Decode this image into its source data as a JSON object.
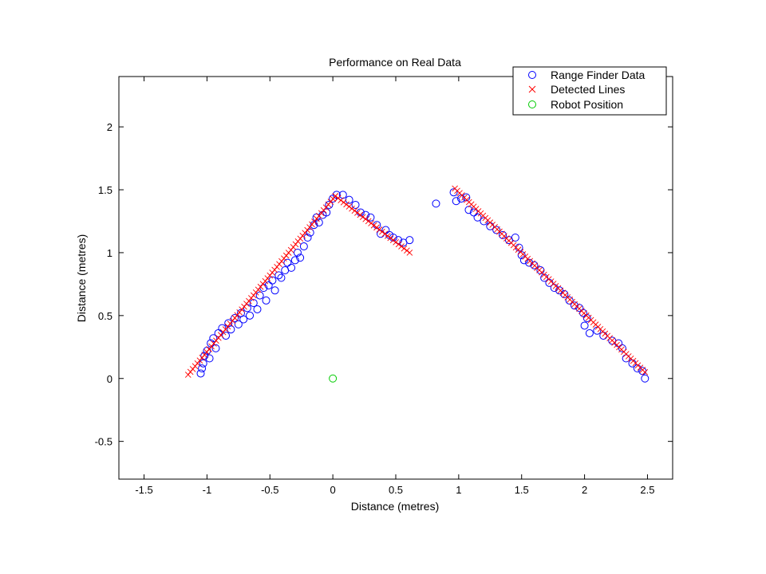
{
  "chart_data": {
    "type": "scatter",
    "title": "Performance on Real Data",
    "xlabel": "Distance (metres)",
    "ylabel": "Distance (metres)",
    "xlim": [
      -1.7,
      2.7
    ],
    "ylim": [
      -0.8,
      2.4
    ],
    "xticks": [
      -1.5,
      -1,
      -0.5,
      0,
      0.5,
      1,
      1.5,
      2,
      2.5
    ],
    "xtick_labels": [
      "-1.5",
      "-1",
      "-0.5",
      "0",
      "0.5",
      "1",
      "1.5",
      "2",
      "2.5"
    ],
    "yticks": [
      -0.5,
      0,
      0.5,
      1,
      1.5,
      2
    ],
    "ytick_labels": [
      "-0.5",
      "0",
      "0.5",
      "1",
      "1.5",
      "2"
    ],
    "grid": false,
    "legend_position": "top-right",
    "series": [
      {
        "name": "Range Finder Data",
        "marker": "circle",
        "color": "#0000ff",
        "points": [
          [
            -1.05,
            0.04
          ],
          [
            -1.04,
            0.08
          ],
          [
            -1.03,
            0.12
          ],
          [
            -1.02,
            0.18
          ],
          [
            -1.0,
            0.22
          ],
          [
            -0.98,
            0.16
          ],
          [
            -0.97,
            0.28
          ],
          [
            -0.95,
            0.32
          ],
          [
            -0.93,
            0.24
          ],
          [
            -0.91,
            0.36
          ],
          [
            -0.88,
            0.4
          ],
          [
            -0.85,
            0.34
          ],
          [
            -0.83,
            0.44
          ],
          [
            -0.81,
            0.39
          ],
          [
            -0.78,
            0.48
          ],
          [
            -0.75,
            0.43
          ],
          [
            -0.73,
            0.52
          ],
          [
            -0.71,
            0.47
          ],
          [
            -0.68,
            0.56
          ],
          [
            -0.66,
            0.5
          ],
          [
            -0.63,
            0.6
          ],
          [
            -0.6,
            0.55
          ],
          [
            -0.58,
            0.66
          ],
          [
            -0.55,
            0.72
          ],
          [
            -0.53,
            0.62
          ],
          [
            -0.51,
            0.74
          ],
          [
            -0.48,
            0.78
          ],
          [
            -0.46,
            0.7
          ],
          [
            -0.43,
            0.82
          ],
          [
            -0.41,
            0.8
          ],
          [
            -0.38,
            0.86
          ],
          [
            -0.36,
            0.92
          ],
          [
            -0.33,
            0.88
          ],
          [
            -0.3,
            0.94
          ],
          [
            -0.28,
            1.0
          ],
          [
            -0.26,
            0.96
          ],
          [
            -0.23,
            1.05
          ],
          [
            -0.2,
            1.12
          ],
          [
            -0.18,
            1.16
          ],
          [
            -0.15,
            1.22
          ],
          [
            -0.13,
            1.28
          ],
          [
            -0.11,
            1.24
          ],
          [
            -0.08,
            1.3
          ],
          [
            -0.05,
            1.32
          ],
          [
            -0.03,
            1.38
          ],
          [
            0.0,
            1.43
          ],
          [
            0.03,
            1.46
          ],
          [
            0.08,
            1.46
          ],
          [
            0.13,
            1.42
          ],
          [
            0.18,
            1.38
          ],
          [
            0.22,
            1.32
          ],
          [
            0.26,
            1.3
          ],
          [
            0.3,
            1.28
          ],
          [
            0.35,
            1.22
          ],
          [
            0.38,
            1.15
          ],
          [
            0.42,
            1.18
          ],
          [
            0.45,
            1.14
          ],
          [
            0.48,
            1.12
          ],
          [
            0.52,
            1.1
          ],
          [
            0.56,
            1.08
          ],
          [
            0.61,
            1.1
          ],
          [
            0.82,
            1.39
          ],
          [
            0.96,
            1.48
          ],
          [
            0.98,
            1.41
          ],
          [
            1.02,
            1.43
          ],
          [
            1.06,
            1.44
          ],
          [
            1.08,
            1.34
          ],
          [
            1.12,
            1.32
          ],
          [
            1.15,
            1.28
          ],
          [
            1.2,
            1.25
          ],
          [
            1.25,
            1.21
          ],
          [
            1.3,
            1.18
          ],
          [
            1.35,
            1.14
          ],
          [
            1.4,
            1.1
          ],
          [
            1.45,
            1.12
          ],
          [
            1.48,
            1.04
          ],
          [
            1.5,
            0.98
          ],
          [
            1.52,
            0.94
          ],
          [
            1.56,
            0.92
          ],
          [
            1.6,
            0.9
          ],
          [
            1.65,
            0.86
          ],
          [
            1.68,
            0.8
          ],
          [
            1.72,
            0.76
          ],
          [
            1.76,
            0.72
          ],
          [
            1.8,
            0.7
          ],
          [
            1.84,
            0.67
          ],
          [
            1.88,
            0.62
          ],
          [
            1.92,
            0.58
          ],
          [
            1.96,
            0.56
          ],
          [
            1.99,
            0.52
          ],
          [
            2.0,
            0.42
          ],
          [
            2.02,
            0.48
          ],
          [
            2.04,
            0.36
          ],
          [
            2.1,
            0.38
          ],
          [
            2.15,
            0.34
          ],
          [
            2.22,
            0.3
          ],
          [
            2.27,
            0.28
          ],
          [
            2.3,
            0.24
          ],
          [
            2.33,
            0.16
          ],
          [
            2.38,
            0.12
          ],
          [
            2.42,
            0.08
          ],
          [
            2.46,
            0.06
          ],
          [
            2.48,
            0.0
          ]
        ]
      },
      {
        "name": "Detected Lines",
        "marker": "x",
        "color": "#ff0000",
        "segments": [
          {
            "from": [
              -1.15,
              0.03
            ],
            "to": [
              0.02,
              1.45
            ],
            "count": 64
          },
          {
            "from": [
              0.02,
              1.45
            ],
            "to": [
              0.61,
              1.0
            ],
            "count": 28
          },
          {
            "from": [
              0.97,
              1.51
            ],
            "to": [
              2.48,
              0.05
            ],
            "count": 82
          }
        ]
      },
      {
        "name": "Robot Position",
        "marker": "circle",
        "color": "#00cc00",
        "points": [
          [
            0,
            0
          ]
        ]
      }
    ]
  }
}
